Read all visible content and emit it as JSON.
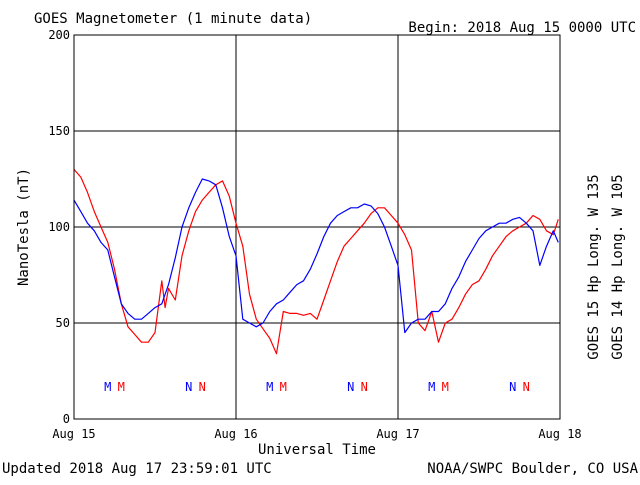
{
  "header": {
    "title": "GOES Magnetometer (1 minute data)",
    "begin": "Begin:  2018 Aug 15 0000 UTC"
  },
  "footer": {
    "updated": "Updated 2018 Aug 17 23:59:01 UTC",
    "source": "NOAA/SWPC Boulder, CO USA"
  },
  "colors": {
    "goes15": "#ff0000",
    "goes14": "#0000ff",
    "grid": "#000000"
  },
  "chart_data": {
    "type": "line",
    "title": "GOES Magnetometer (1 minute data)",
    "xlabel": "Universal Time",
    "ylabel": "NanoTesla (nT)",
    "ylim": [
      0,
      200
    ],
    "yticks": [
      0,
      50,
      100,
      150,
      200
    ],
    "xlim": [
      "2018-08-15 00:00",
      "2018-08-18 00:00"
    ],
    "xticks": [
      {
        "label": "Aug 15",
        "x": "2018-08-15 00:00"
      },
      {
        "label": "Aug 16",
        "x": "2018-08-16 00:00"
      },
      {
        "label": "Aug 17",
        "x": "2018-08-17 00:00"
      },
      {
        "label": "Aug 18",
        "x": "2018-08-18 00:00"
      }
    ],
    "grid": true,
    "series": [
      {
        "name": "GOES 15 Hp  Long. W 135",
        "color": "#ff0000",
        "points": [
          [
            "2018-08-15 00:00",
            130
          ],
          [
            "2018-08-15 01:00",
            126
          ],
          [
            "2018-08-15 02:00",
            118
          ],
          [
            "2018-08-15 03:00",
            108
          ],
          [
            "2018-08-15 04:00",
            100
          ],
          [
            "2018-08-15 05:00",
            92
          ],
          [
            "2018-08-15 06:00",
            78
          ],
          [
            "2018-08-15 07:00",
            60
          ],
          [
            "2018-08-15 08:00",
            48
          ],
          [
            "2018-08-15 09:00",
            44
          ],
          [
            "2018-08-15 10:00",
            40
          ],
          [
            "2018-08-15 11:00",
            40
          ],
          [
            "2018-08-15 12:00",
            45
          ],
          [
            "2018-08-15 13:00",
            72
          ],
          [
            "2018-08-15 13:30",
            58
          ],
          [
            "2018-08-15 14:00",
            68
          ],
          [
            "2018-08-15 15:00",
            62
          ],
          [
            "2018-08-15 16:00",
            85
          ],
          [
            "2018-08-15 17:00",
            98
          ],
          [
            "2018-08-15 18:00",
            108
          ],
          [
            "2018-08-15 19:00",
            114
          ],
          [
            "2018-08-15 20:00",
            118
          ],
          [
            "2018-08-15 21:00",
            122
          ],
          [
            "2018-08-15 22:00",
            124
          ],
          [
            "2018-08-15 23:00",
            116
          ],
          [
            "2018-08-16 00:00",
            102
          ],
          [
            "2018-08-16 01:00",
            90
          ],
          [
            "2018-08-16 02:00",
            65
          ],
          [
            "2018-08-16 03:00",
            52
          ],
          [
            "2018-08-16 04:00",
            47
          ],
          [
            "2018-08-16 05:00",
            42
          ],
          [
            "2018-08-16 06:00",
            34
          ],
          [
            "2018-08-16 07:00",
            56
          ],
          [
            "2018-08-16 08:00",
            55
          ],
          [
            "2018-08-16 09:00",
            55
          ],
          [
            "2018-08-16 10:00",
            54
          ],
          [
            "2018-08-16 11:00",
            55
          ],
          [
            "2018-08-16 12:00",
            52
          ],
          [
            "2018-08-16 13:00",
            62
          ],
          [
            "2018-08-16 14:00",
            72
          ],
          [
            "2018-08-16 15:00",
            82
          ],
          [
            "2018-08-16 16:00",
            90
          ],
          [
            "2018-08-16 17:00",
            94
          ],
          [
            "2018-08-16 18:00",
            98
          ],
          [
            "2018-08-16 19:00",
            102
          ],
          [
            "2018-08-16 20:00",
            107
          ],
          [
            "2018-08-16 21:00",
            110
          ],
          [
            "2018-08-16 22:00",
            110
          ],
          [
            "2018-08-16 23:00",
            106
          ],
          [
            "2018-08-17 00:00",
            102
          ],
          [
            "2018-08-17 01:00",
            96
          ],
          [
            "2018-08-17 02:00",
            88
          ],
          [
            "2018-08-17 03:00",
            50
          ],
          [
            "2018-08-17 04:00",
            46
          ],
          [
            "2018-08-17 05:00",
            56
          ],
          [
            "2018-08-17 06:00",
            40
          ],
          [
            "2018-08-17 07:00",
            50
          ],
          [
            "2018-08-17 08:00",
            52
          ],
          [
            "2018-08-17 09:00",
            58
          ],
          [
            "2018-08-17 10:00",
            65
          ],
          [
            "2018-08-17 11:00",
            70
          ],
          [
            "2018-08-17 12:00",
            72
          ],
          [
            "2018-08-17 13:00",
            78
          ],
          [
            "2018-08-17 14:00",
            85
          ],
          [
            "2018-08-17 15:00",
            90
          ],
          [
            "2018-08-17 16:00",
            95
          ],
          [
            "2018-08-17 17:00",
            98
          ],
          [
            "2018-08-17 18:00",
            100
          ],
          [
            "2018-08-17 19:00",
            102
          ],
          [
            "2018-08-17 20:00",
            106
          ],
          [
            "2018-08-17 21:00",
            104
          ],
          [
            "2018-08-17 22:00",
            98
          ],
          [
            "2018-08-17 23:00",
            96
          ],
          [
            "2018-08-17 23:45",
            104
          ]
        ]
      },
      {
        "name": "GOES 14 Hp  Long. W 105",
        "color": "#0000ff",
        "points": [
          [
            "2018-08-15 00:00",
            114
          ],
          [
            "2018-08-15 01:00",
            108
          ],
          [
            "2018-08-15 02:00",
            102
          ],
          [
            "2018-08-15 03:00",
            98
          ],
          [
            "2018-08-15 04:00",
            92
          ],
          [
            "2018-08-15 05:00",
            88
          ],
          [
            "2018-08-15 06:00",
            74
          ],
          [
            "2018-08-15 07:00",
            60
          ],
          [
            "2018-08-15 08:00",
            55
          ],
          [
            "2018-08-15 09:00",
            52
          ],
          [
            "2018-08-15 10:00",
            52
          ],
          [
            "2018-08-15 11:00",
            55
          ],
          [
            "2018-08-15 12:00",
            58
          ],
          [
            "2018-08-15 13:00",
            60
          ],
          [
            "2018-08-15 14:00",
            70
          ],
          [
            "2018-08-15 15:00",
            84
          ],
          [
            "2018-08-15 16:00",
            100
          ],
          [
            "2018-08-15 17:00",
            110
          ],
          [
            "2018-08-15 18:00",
            118
          ],
          [
            "2018-08-15 19:00",
            125
          ],
          [
            "2018-08-15 20:00",
            124
          ],
          [
            "2018-08-15 21:00",
            122
          ],
          [
            "2018-08-15 22:00",
            110
          ],
          [
            "2018-08-15 23:00",
            95
          ],
          [
            "2018-08-16 00:00",
            85
          ],
          [
            "2018-08-16 01:00",
            52
          ],
          [
            "2018-08-16 02:00",
            50
          ],
          [
            "2018-08-16 03:00",
            48
          ],
          [
            "2018-08-16 04:00",
            50
          ],
          [
            "2018-08-16 05:00",
            56
          ],
          [
            "2018-08-16 06:00",
            60
          ],
          [
            "2018-08-16 07:00",
            62
          ],
          [
            "2018-08-16 08:00",
            66
          ],
          [
            "2018-08-16 09:00",
            70
          ],
          [
            "2018-08-16 10:00",
            72
          ],
          [
            "2018-08-16 11:00",
            78
          ],
          [
            "2018-08-16 12:00",
            86
          ],
          [
            "2018-08-16 13:00",
            95
          ],
          [
            "2018-08-16 14:00",
            102
          ],
          [
            "2018-08-16 15:00",
            106
          ],
          [
            "2018-08-16 16:00",
            108
          ],
          [
            "2018-08-16 17:00",
            110
          ],
          [
            "2018-08-16 18:00",
            110
          ],
          [
            "2018-08-16 19:00",
            112
          ],
          [
            "2018-08-16 20:00",
            111
          ],
          [
            "2018-08-16 21:00",
            107
          ],
          [
            "2018-08-16 22:00",
            100
          ],
          [
            "2018-08-16 23:00",
            90
          ],
          [
            "2018-08-17 00:00",
            80
          ],
          [
            "2018-08-17 01:00",
            45
          ],
          [
            "2018-08-17 02:00",
            50
          ],
          [
            "2018-08-17 03:00",
            52
          ],
          [
            "2018-08-17 04:00",
            52
          ],
          [
            "2018-08-17 05:00",
            56
          ],
          [
            "2018-08-17 06:00",
            56
          ],
          [
            "2018-08-17 07:00",
            60
          ],
          [
            "2018-08-17 08:00",
            68
          ],
          [
            "2018-08-17 09:00",
            74
          ],
          [
            "2018-08-17 10:00",
            82
          ],
          [
            "2018-08-17 11:00",
            88
          ],
          [
            "2018-08-17 12:00",
            94
          ],
          [
            "2018-08-17 13:00",
            98
          ],
          [
            "2018-08-17 14:00",
            100
          ],
          [
            "2018-08-17 15:00",
            102
          ],
          [
            "2018-08-17 16:00",
            102
          ],
          [
            "2018-08-17 17:00",
            104
          ],
          [
            "2018-08-17 18:00",
            105
          ],
          [
            "2018-08-17 19:00",
            102
          ],
          [
            "2018-08-17 20:00",
            98
          ],
          [
            "2018-08-17 21:00",
            80
          ],
          [
            "2018-08-17 22:00",
            90
          ],
          [
            "2018-08-17 23:00",
            98
          ],
          [
            "2018-08-17 23:45",
            92
          ]
        ]
      }
    ],
    "annotations": [
      {
        "text": "M",
        "color": "#0000ff",
        "x": "2018-08-15 05:00"
      },
      {
        "text": "M",
        "color": "#ff0000",
        "x": "2018-08-15 07:00"
      },
      {
        "text": "N",
        "color": "#0000ff",
        "x": "2018-08-15 17:00"
      },
      {
        "text": "N",
        "color": "#ff0000",
        "x": "2018-08-15 19:00"
      },
      {
        "text": "M",
        "color": "#0000ff",
        "x": "2018-08-16 05:00"
      },
      {
        "text": "M",
        "color": "#ff0000",
        "x": "2018-08-16 07:00"
      },
      {
        "text": "N",
        "color": "#0000ff",
        "x": "2018-08-16 17:00"
      },
      {
        "text": "N",
        "color": "#ff0000",
        "x": "2018-08-16 19:00"
      },
      {
        "text": "M",
        "color": "#0000ff",
        "x": "2018-08-17 05:00"
      },
      {
        "text": "M",
        "color": "#ff0000",
        "x": "2018-08-17 07:00"
      },
      {
        "text": "N",
        "color": "#0000ff",
        "x": "2018-08-17 17:00"
      },
      {
        "text": "N",
        "color": "#ff0000",
        "x": "2018-08-17 19:00"
      }
    ]
  }
}
